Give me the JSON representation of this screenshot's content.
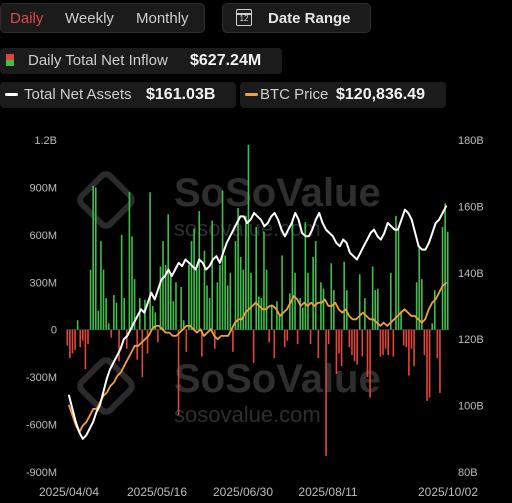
{
  "toolbar": {
    "tabs": [
      {
        "label": "Daily",
        "active": true
      },
      {
        "label": "Weekly",
        "active": false
      },
      {
        "label": "Monthly",
        "active": false
      }
    ],
    "date_range_label": "Date Range",
    "calendar_icon": "calendar-icon",
    "calendar_day": "12"
  },
  "legend": {
    "inflow": {
      "label": "Daily Total Net Inflow",
      "value": "$627.24M",
      "icon": "red-green-bar-icon"
    },
    "assets": {
      "label": "Total Net Assets",
      "value": "$161.03B",
      "color": "#ffffff"
    },
    "btc": {
      "label": "BTC Price",
      "value": "$120,836.49",
      "color": "#f0a23a"
    }
  },
  "watermark": "SoSoValue",
  "watermark_url": "sosovalue.com",
  "colors": {
    "positive": "#3fbf4a",
    "negative": "#e2453c",
    "assets_line": "#ffffff",
    "btc_line": "#f0a23a"
  },
  "chart_data": {
    "type": "bar+line",
    "x_axis": {
      "type": "date",
      "range": [
        "2025-03-24",
        "2025-10-02"
      ],
      "tick_labels": [
        "2025/04/04",
        "2025/05/16",
        "2025/06/30",
        "2025/08/11",
        "2025/10/02"
      ]
    },
    "y_left": {
      "min": -900,
      "max": 1200,
      "unit": "M",
      "tick_labels": [
        "1.2B",
        "900M",
        "600M",
        "300M",
        "0",
        "-300M",
        "-600M",
        "-900M"
      ],
      "tick_values": [
        1200,
        900,
        600,
        300,
        0,
        -300,
        -600,
        -900
      ]
    },
    "y_right": {
      "min": 80,
      "max": 180,
      "unit": "B",
      "tick_labels": [
        "180B",
        "160B",
        "140B",
        "120B",
        "100B",
        "80B"
      ],
      "tick_values": [
        180,
        160,
        140,
        120,
        100,
        80
      ]
    },
    "inflow_bars_millions": [
      -100,
      -180,
      -150,
      -130,
      60,
      -110,
      -70,
      -250,
      -90,
      380,
      910,
      900,
      120,
      560,
      380,
      200,
      40,
      -50,
      220,
      170,
      -200,
      600,
      200,
      -120,
      870,
      590,
      320,
      -190,
      200,
      -300,
      190,
      -150,
      870,
      150,
      110,
      -80,
      400,
      560,
      410,
      730,
      350,
      180,
      300,
      -540,
      270,
      60,
      -140,
      410,
      560,
      640,
      380,
      750,
      -170,
      500,
      280,
      200,
      690,
      -120,
      300,
      410,
      880,
      470,
      280,
      360,
      -140,
      560,
      770,
      460,
      380,
      720,
      1170,
      360,
      -210,
      650,
      210,
      200,
      620,
      380,
      -80,
      160,
      -180,
      180,
      100,
      470,
      -110,
      -70,
      230,
      700,
      360,
      -90,
      200,
      140,
      680,
      360,
      -90,
      460,
      560,
      -180,
      300,
      260,
      -800,
      -90,
      420,
      250,
      -280,
      -150,
      -230,
      430,
      250,
      -110,
      -160,
      -200,
      -220,
      350,
      -170,
      200,
      -300,
      -430,
      400,
      250,
      260,
      -170,
      -160,
      -120,
      -160,
      360,
      -170,
      720,
      630,
      120,
      -100,
      -110,
      -290,
      -120,
      -230,
      300,
      520,
      320,
      -160,
      -450,
      -430,
      40,
      250,
      -180,
      -400,
      650,
      800,
      620
    ],
    "total_net_assets_B": [
      103,
      99,
      95,
      92,
      90,
      91,
      93,
      95,
      98,
      100,
      104,
      108,
      111,
      113,
      115,
      117,
      120,
      121,
      123,
      125,
      127,
      129,
      128,
      131,
      134,
      132,
      135,
      138,
      139,
      141,
      139,
      141,
      143,
      142,
      144,
      143,
      142,
      141,
      144,
      143,
      141,
      142,
      144,
      145,
      143,
      146,
      149,
      151,
      153,
      155,
      157,
      157,
      155,
      156,
      158,
      157,
      156,
      154,
      155,
      157,
      158,
      156,
      153,
      151,
      153,
      155,
      158,
      156,
      152,
      151,
      151,
      153,
      156,
      158,
      155,
      153,
      152,
      151,
      149,
      148,
      150,
      149,
      146,
      145,
      144,
      146,
      148,
      150,
      152,
      153,
      151,
      150,
      152,
      155,
      154,
      153,
      153,
      156,
      159,
      158,
      156,
      152,
      148,
      147,
      147,
      149,
      152,
      155,
      156,
      158,
      160
    ],
    "btc_price_B": [
      100,
      97,
      94,
      92,
      94,
      95,
      97,
      99,
      99,
      101,
      103,
      104,
      106,
      107,
      109,
      110,
      112,
      114,
      116,
      118,
      118,
      119,
      120,
      121,
      123,
      124,
      124,
      123,
      122,
      122,
      121,
      121,
      122,
      123,
      124,
      124,
      123,
      122,
      123,
      121,
      122,
      123,
      121,
      120,
      121,
      121,
      121,
      123,
      125,
      126,
      126,
      128,
      129,
      130,
      131,
      130,
      129,
      129,
      130,
      130,
      129,
      127,
      128,
      129,
      131,
      133,
      132,
      130,
      131,
      130,
      131,
      130,
      131,
      131,
      132,
      130,
      130,
      131,
      129,
      128,
      129,
      127,
      126,
      126,
      127,
      128,
      127,
      126,
      126,
      125,
      124,
      125,
      124,
      125,
      126,
      127,
      128,
      129,
      128,
      127,
      127,
      126,
      125,
      126,
      129,
      131,
      132,
      134,
      136,
      137
    ]
  }
}
